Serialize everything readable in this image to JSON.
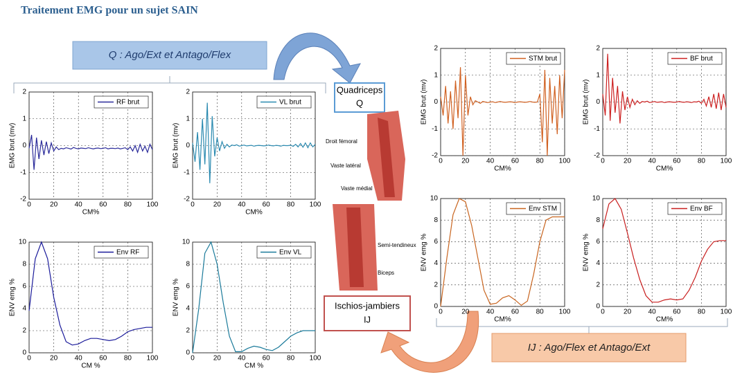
{
  "header": {
    "title": "Traitement EMG pour un sujet SAIN"
  },
  "annotations": {
    "q_group": "Q : Ago/Ext et Antago/Flex",
    "ij_group": "IJ : Ago/Flex et Antago/Ext",
    "quadriceps": {
      "name": "Quadriceps",
      "abbr": "Q"
    },
    "ischios": {
      "name": "Ischios-jambiers",
      "abbr": "IJ"
    },
    "muscles": [
      "Droit fémoral",
      "Vaste latéral",
      "Vaste médial",
      "Semi-tendineux",
      "Biceps"
    ]
  },
  "chart_data": [
    {
      "type": "line",
      "xlabel": "CM%",
      "ylabel": "EMG brut (mv)",
      "xlim": [
        0,
        100
      ],
      "ylim": [
        -2,
        2
      ],
      "xticks": [
        0,
        20,
        40,
        60,
        80,
        100
      ],
      "yticks": [
        -2,
        -1,
        0,
        1,
        2
      ],
      "grid": true,
      "legend": "upper right",
      "x": [
        0,
        2,
        4,
        6,
        8,
        10,
        12,
        14,
        16,
        18,
        20,
        22,
        24,
        26,
        28,
        30,
        32,
        34,
        36,
        38,
        40,
        42,
        44,
        46,
        48,
        50,
        52,
        54,
        56,
        58,
        60,
        62,
        64,
        66,
        68,
        70,
        72,
        74,
        76,
        78,
        80,
        82,
        84,
        86,
        88,
        90,
        92,
        94,
        96,
        98,
        100
      ],
      "series": [
        {
          "name": "RF brut",
          "color": "#2a2a9a",
          "values": [
            -0.1,
            0.4,
            -0.9,
            0.3,
            -0.5,
            0.2,
            -0.35,
            0.15,
            -0.3,
            0.1,
            -0.2,
            -0.05,
            -0.15,
            -0.1,
            -0.12,
            -0.08,
            -0.1,
            -0.13,
            -0.07,
            -0.1,
            -0.12,
            -0.09,
            -0.1,
            -0.11,
            -0.08,
            -0.1,
            -0.12,
            -0.1,
            -0.09,
            -0.11,
            -0.1,
            -0.08,
            -0.12,
            -0.1,
            -0.1,
            -0.11,
            -0.09,
            -0.12,
            -0.1,
            -0.08,
            -0.15,
            -0.05,
            -0.2,
            0.0,
            -0.25,
            0.05,
            -0.2,
            -0.02,
            -0.25,
            0.05,
            -0.15
          ]
        }
      ]
    },
    {
      "type": "line",
      "xlabel": "CM%",
      "ylabel": "EMG brut (mv)",
      "xlim": [
        0,
        100
      ],
      "ylim": [
        -2,
        2
      ],
      "xticks": [
        0,
        20,
        40,
        60,
        80,
        100
      ],
      "yticks": [
        -2,
        -1,
        0,
        1,
        2
      ],
      "grid": true,
      "legend": "upper right",
      "x": [
        0,
        2,
        4,
        6,
        8,
        10,
        12,
        14,
        16,
        18,
        20,
        22,
        24,
        26,
        28,
        30,
        32,
        34,
        36,
        38,
        40,
        42,
        44,
        46,
        48,
        50,
        52,
        54,
        56,
        58,
        60,
        62,
        64,
        66,
        68,
        70,
        72,
        74,
        76,
        78,
        80,
        82,
        84,
        86,
        88,
        90,
        92,
        94,
        96,
        98,
        100
      ],
      "series": [
        {
          "name": "VL brut",
          "color": "#2a8ab0",
          "values": [
            0.1,
            -0.6,
            0.5,
            -0.9,
            1.0,
            -0.7,
            1.6,
            -1.4,
            1.1,
            -0.4,
            0.3,
            -0.2,
            0.15,
            -0.1,
            0.05,
            -0.05,
            0.02,
            0,
            0.03,
            -0.02,
            0,
            0.02,
            -0.01,
            0,
            0.01,
            -0.02,
            0,
            0.01,
            0,
            -0.01,
            0,
            0.02,
            0,
            -0.01,
            0.01,
            0,
            -0.02,
            0.01,
            0,
            0,
            0.02,
            -0.03,
            0.05,
            -0.05,
            0.08,
            -0.06,
            0.1,
            -0.08,
            0.1,
            -0.05,
            0.05
          ]
        }
      ]
    },
    {
      "type": "line",
      "xlabel": "CM %",
      "ylabel": "ENV emg %",
      "xlim": [
        0,
        100
      ],
      "ylim": [
        0,
        10
      ],
      "xticks": [
        0,
        20,
        40,
        60,
        80,
        100
      ],
      "yticks": [
        0,
        2,
        4,
        6,
        8,
        10
      ],
      "grid": true,
      "legend": "upper right",
      "x": [
        0,
        5,
        10,
        15,
        20,
        25,
        30,
        35,
        40,
        45,
        50,
        55,
        60,
        65,
        70,
        75,
        80,
        85,
        90,
        95,
        100
      ],
      "series": [
        {
          "name": "Env RF",
          "color": "#1a1a9a",
          "values": [
            3.8,
            8.5,
            10,
            8.5,
            5,
            2.5,
            1,
            0.7,
            0.8,
            1.1,
            1.3,
            1.3,
            1.2,
            1.1,
            1.2,
            1.5,
            1.9,
            2.1,
            2.2,
            2.3,
            2.3
          ]
        }
      ]
    },
    {
      "type": "line",
      "xlabel": "CM %",
      "ylabel": "ENV emg %",
      "xlim": [
        0,
        100
      ],
      "ylim": [
        0,
        10
      ],
      "xticks": [
        0,
        20,
        40,
        60,
        80,
        100
      ],
      "yticks": [
        0,
        2,
        4,
        6,
        8,
        10
      ],
      "grid": true,
      "legend": "upper right",
      "x": [
        0,
        5,
        10,
        15,
        20,
        25,
        30,
        35,
        40,
        45,
        50,
        55,
        60,
        65,
        70,
        75,
        80,
        85,
        90,
        95,
        100
      ],
      "series": [
        {
          "name": "Env VL",
          "color": "#1a7a9a",
          "values": [
            0,
            4,
            9,
            10,
            8,
            4.5,
            1.5,
            0.1,
            0.1,
            0.4,
            0.6,
            0.5,
            0.3,
            0.2,
            0.5,
            1,
            1.5,
            1.8,
            2,
            2,
            2
          ]
        }
      ]
    },
    {
      "type": "line",
      "xlabel": "CM%",
      "ylabel": "EMG brut (mv)",
      "xlim": [
        0,
        100
      ],
      "ylim": [
        -2,
        2
      ],
      "xticks": [
        0,
        20,
        40,
        60,
        80,
        100
      ],
      "yticks": [
        -2,
        -1,
        0,
        1,
        2
      ],
      "grid": true,
      "legend": "upper right",
      "x": [
        0,
        2,
        4,
        6,
        8,
        10,
        12,
        14,
        16,
        18,
        20,
        22,
        24,
        26,
        28,
        30,
        32,
        34,
        36,
        38,
        40,
        42,
        44,
        46,
        48,
        50,
        52,
        54,
        56,
        58,
        60,
        62,
        64,
        66,
        68,
        70,
        72,
        74,
        76,
        78,
        80,
        82,
        84,
        86,
        88,
        90,
        92,
        94,
        96,
        98,
        100
      ],
      "series": [
        {
          "name": "STM brut",
          "color": "#d06020",
          "values": [
            0.2,
            -0.5,
            0.6,
            -0.8,
            0.4,
            -1.0,
            0.8,
            -0.6,
            1.3,
            -2.0,
            1.0,
            -0.5,
            0.2,
            -0.1,
            0.05,
            0,
            -0.05,
            0.02,
            0,
            -0.02,
            0,
            0.01,
            -0.02,
            0,
            0.02,
            0,
            -0.01,
            0,
            0.01,
            0,
            -0.02,
            0,
            0.01,
            0,
            -0.01,
            0,
            0.02,
            0,
            -0.01,
            0,
            0.3,
            -1.5,
            1.2,
            -2.0,
            0.9,
            -0.8,
            0.6,
            -1.2,
            1.0,
            -0.6,
            1.2
          ]
        }
      ]
    },
    {
      "type": "line",
      "xlabel": "CM%",
      "ylabel": "EMG brut (mv)",
      "xlim": [
        0,
        100
      ],
      "ylim": [
        -2,
        2
      ],
      "xticks": [
        0,
        20,
        40,
        60,
        80,
        100
      ],
      "yticks": [
        -2,
        -1,
        0,
        1,
        2
      ],
      "grid": true,
      "legend": "upper right",
      "x": [
        0,
        2,
        4,
        6,
        8,
        10,
        12,
        14,
        16,
        18,
        20,
        22,
        24,
        26,
        28,
        30,
        32,
        34,
        36,
        38,
        40,
        42,
        44,
        46,
        48,
        50,
        52,
        54,
        56,
        58,
        60,
        62,
        64,
        66,
        68,
        70,
        72,
        74,
        76,
        78,
        80,
        82,
        84,
        86,
        88,
        90,
        92,
        94,
        96,
        98,
        100
      ],
      "series": [
        {
          "name": "BF brut",
          "color": "#cc2020",
          "values": [
            0.3,
            -0.5,
            1.8,
            -0.7,
            0.9,
            -0.4,
            0.6,
            -0.8,
            0.4,
            -0.3,
            0.2,
            -0.2,
            0.1,
            -0.1,
            0.05,
            -0.05,
            0.02,
            0,
            0.03,
            -0.02,
            0,
            0.02,
            -0.01,
            0,
            0.01,
            -0.02,
            0,
            0.01,
            0,
            -0.01,
            0,
            0.02,
            0,
            -0.01,
            0.01,
            0,
            -0.02,
            0.01,
            0,
            0.03,
            -0.05,
            0.1,
            -0.15,
            0.2,
            -0.2,
            0.3,
            -0.25,
            0.35,
            -0.3,
            0.3,
            -0.2
          ]
        }
      ]
    },
    {
      "type": "line",
      "xlabel": "CM%",
      "ylabel": "ENV emg %",
      "xlim": [
        0,
        100
      ],
      "ylim": [
        0,
        10
      ],
      "xticks": [
        0,
        20,
        40,
        60,
        80,
        100
      ],
      "yticks": [
        0,
        2,
        4,
        6,
        8,
        10
      ],
      "grid": true,
      "legend": "upper right",
      "x": [
        0,
        5,
        10,
        15,
        20,
        25,
        30,
        35,
        40,
        45,
        50,
        55,
        60,
        65,
        70,
        75,
        80,
        85,
        90,
        95,
        100
      ],
      "series": [
        {
          "name": "Env STM",
          "color": "#c8641e",
          "values": [
            0,
            4.5,
            8.5,
            10,
            9.7,
            7.5,
            4.5,
            1.5,
            0.2,
            0.3,
            0.8,
            1,
            0.6,
            0.1,
            0.5,
            3,
            6,
            8,
            8.3,
            8.3,
            8.3
          ]
        }
      ]
    },
    {
      "type": "line",
      "xlabel": "CM%",
      "ylabel": "ENV emg %",
      "xlim": [
        0,
        100
      ],
      "ylim": [
        0,
        10
      ],
      "xticks": [
        0,
        20,
        40,
        60,
        80,
        100
      ],
      "yticks": [
        0,
        2,
        4,
        6,
        8,
        10
      ],
      "grid": true,
      "legend": "upper right",
      "x": [
        0,
        5,
        10,
        15,
        20,
        25,
        30,
        35,
        40,
        45,
        50,
        55,
        60,
        65,
        70,
        75,
        80,
        85,
        90,
        95,
        100
      ],
      "series": [
        {
          "name": "Env BF",
          "color": "#c81e1e",
          "values": [
            7.2,
            9.5,
            10,
            9,
            6.8,
            4.5,
            2.5,
            1,
            0.4,
            0.4,
            0.6,
            0.7,
            0.6,
            0.7,
            1.5,
            2.7,
            4.2,
            5.3,
            6,
            6.1,
            6.1
          ]
        }
      ]
    }
  ]
}
